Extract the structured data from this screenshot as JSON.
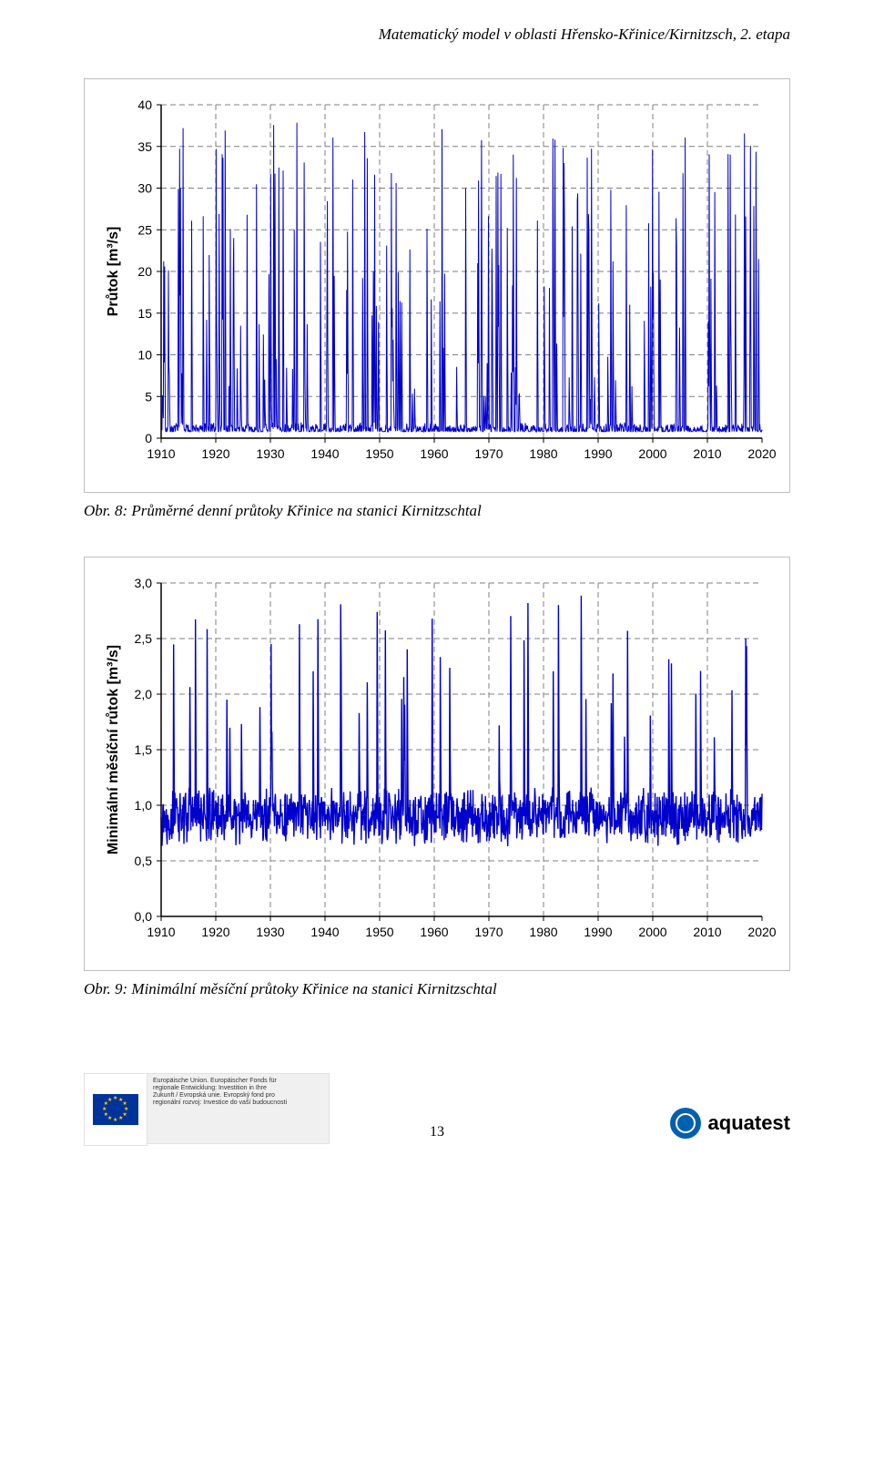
{
  "header": {
    "title": "Matematický model v oblasti Hřensko-Křinice/Kirnitzsch, 2. etapa"
  },
  "chart1": {
    "type": "line",
    "ylabel": "Průtok [m³/s]",
    "ylim": [
      0,
      40
    ],
    "ytick_step": 5,
    "xlim": [
      1910,
      2020
    ],
    "xtick_step": 10,
    "axis_color": "#000000",
    "grid_color": "#808080",
    "grid_dash": "6,4",
    "line_color": "#0000cc",
    "line_width": 1,
    "background": "#ffffff",
    "tick_fontsize": 14,
    "label_fontsize": 16,
    "base_level": 1.0,
    "noise_amplitude": 1.2,
    "spike_count": 180,
    "spike_min": 4,
    "spike_max": 38,
    "seed": 7
  },
  "caption1": "Obr. 8: Průměrné denní průtoky Křinice na stanici Kirnitzschtal",
  "chart2": {
    "type": "line",
    "ylabel": "Minimální měsíční růtok [m³/s]",
    "ylim": [
      0.0,
      3.0
    ],
    "ytick_step": 0.5,
    "xlim": [
      1910,
      2020
    ],
    "xtick_step": 10,
    "axis_color": "#000000",
    "grid_color": "#808080",
    "grid_dash": "6,4",
    "line_color": "#0000cc",
    "line_width": 1.4,
    "background": "#ffffff",
    "tick_fontsize": 14,
    "label_fontsize": 16,
    "base_level": 0.9,
    "noise_amplitude": 0.35,
    "spike_count": 50,
    "spike_min": 1.6,
    "spike_max": 2.9,
    "seed": 13
  },
  "caption2": "Obr. 9: Minimální měsíční průtoky Křinice na stanici Kirnitzschtal",
  "footer": {
    "page_number": "13",
    "eu_text": "Europäische Union. Europäischer Fonds für\nregionale Entwicklung: Investition in Ihre\nZukunft / Evropská unie. Evropský fond pro\nregionální rozvoj: Investice do vaší budoucnosti",
    "aquatest_label": "aquatest"
  }
}
